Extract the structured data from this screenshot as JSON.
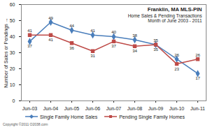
{
  "chart_data": {
    "type": "line",
    "title": "Franklin, MA MLS-PIN",
    "subtitle": "Home Sales & Pending Transactions\nMonth of June 2003 - 2011",
    "y_label": "Number of Sales or Pendings",
    "annotation": "Copyright ©2011 O2038.com",
    "categories": [
      "Jun-03",
      "Jun-04",
      "Jun-05",
      "Jun-06",
      "Jun-07",
      "Jun-08",
      "Jun-09",
      "Jun-10",
      "Jun-11"
    ],
    "series": [
      {
        "name": "Single Family Home Sales",
        "color": "#4a7ebb",
        "marker": "diamond",
        "values": [
          37,
          49,
          44,
          41,
          40,
          38,
          35,
          26,
          17
        ]
      },
      {
        "name": "Pending Single Family Homes",
        "color": "#be4b48",
        "marker": "square",
        "values": [
          41,
          41,
          36,
          31,
          37,
          34,
          35,
          23,
          26
        ]
      }
    ],
    "ylim": [
      0,
      60
    ],
    "yticks": [
      0,
      10,
      20,
      30,
      40,
      50,
      60
    ],
    "grid": false,
    "data_labels": true,
    "legend": "bottom"
  }
}
